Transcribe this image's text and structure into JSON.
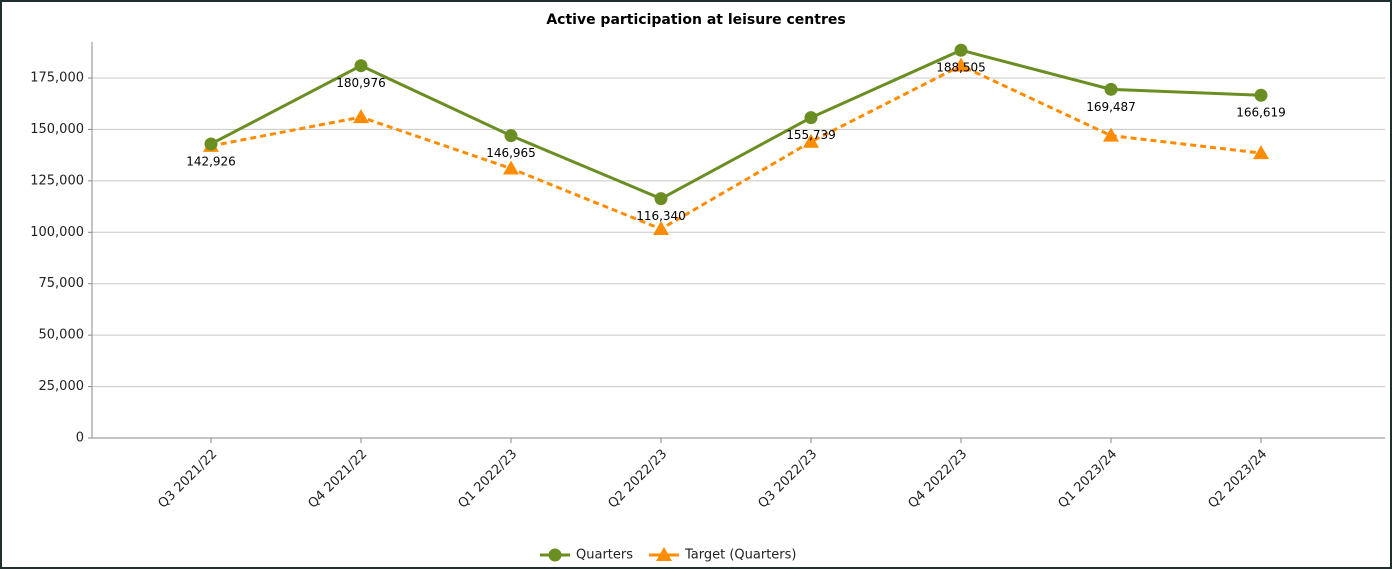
{
  "chart_data": {
    "type": "line",
    "title": "Active participation at leisure centres",
    "categories": [
      "Q3 2021/22",
      "Q4 2021/22",
      "Q1 2022/23",
      "Q2 2022/23",
      "Q3 2022/23",
      "Q4 2022/23",
      "Q1 2023/24",
      "Q2 2023/24"
    ],
    "series": [
      {
        "name": "Quarters",
        "color": "#6b8e23",
        "marker": "circle",
        "dash": false,
        "values": [
          142926,
          180976,
          146965,
          116340,
          155739,
          188505,
          169487,
          166619
        ],
        "value_labels": [
          "142,926",
          "180,976",
          "146,965",
          "116,340",
          "155,739",
          "188,505",
          "169,487",
          "166,619"
        ]
      },
      {
        "name": "Target (Quarters)",
        "color": "#ff8c00",
        "marker": "triangle",
        "dash": true,
        "values": [
          142000,
          156000,
          131000,
          101600,
          144000,
          181000,
          147000,
          138500
        ]
      }
    ],
    "ylim": [
      0,
      192500
    ],
    "yticks": [
      0,
      {
        "value": 25000,
        "label": "25,000"
      },
      {
        "value": 50000,
        "label": "50,000"
      },
      {
        "value": 75000,
        "label": "75,000"
      },
      {
        "value": 100000,
        "label": "100,000"
      },
      {
        "value": 125000,
        "label": "125,000"
      },
      {
        "value": 150000,
        "label": "150,000"
      },
      {
        "value": 175000,
        "label": "175,000"
      }
    ],
    "grid": true
  }
}
